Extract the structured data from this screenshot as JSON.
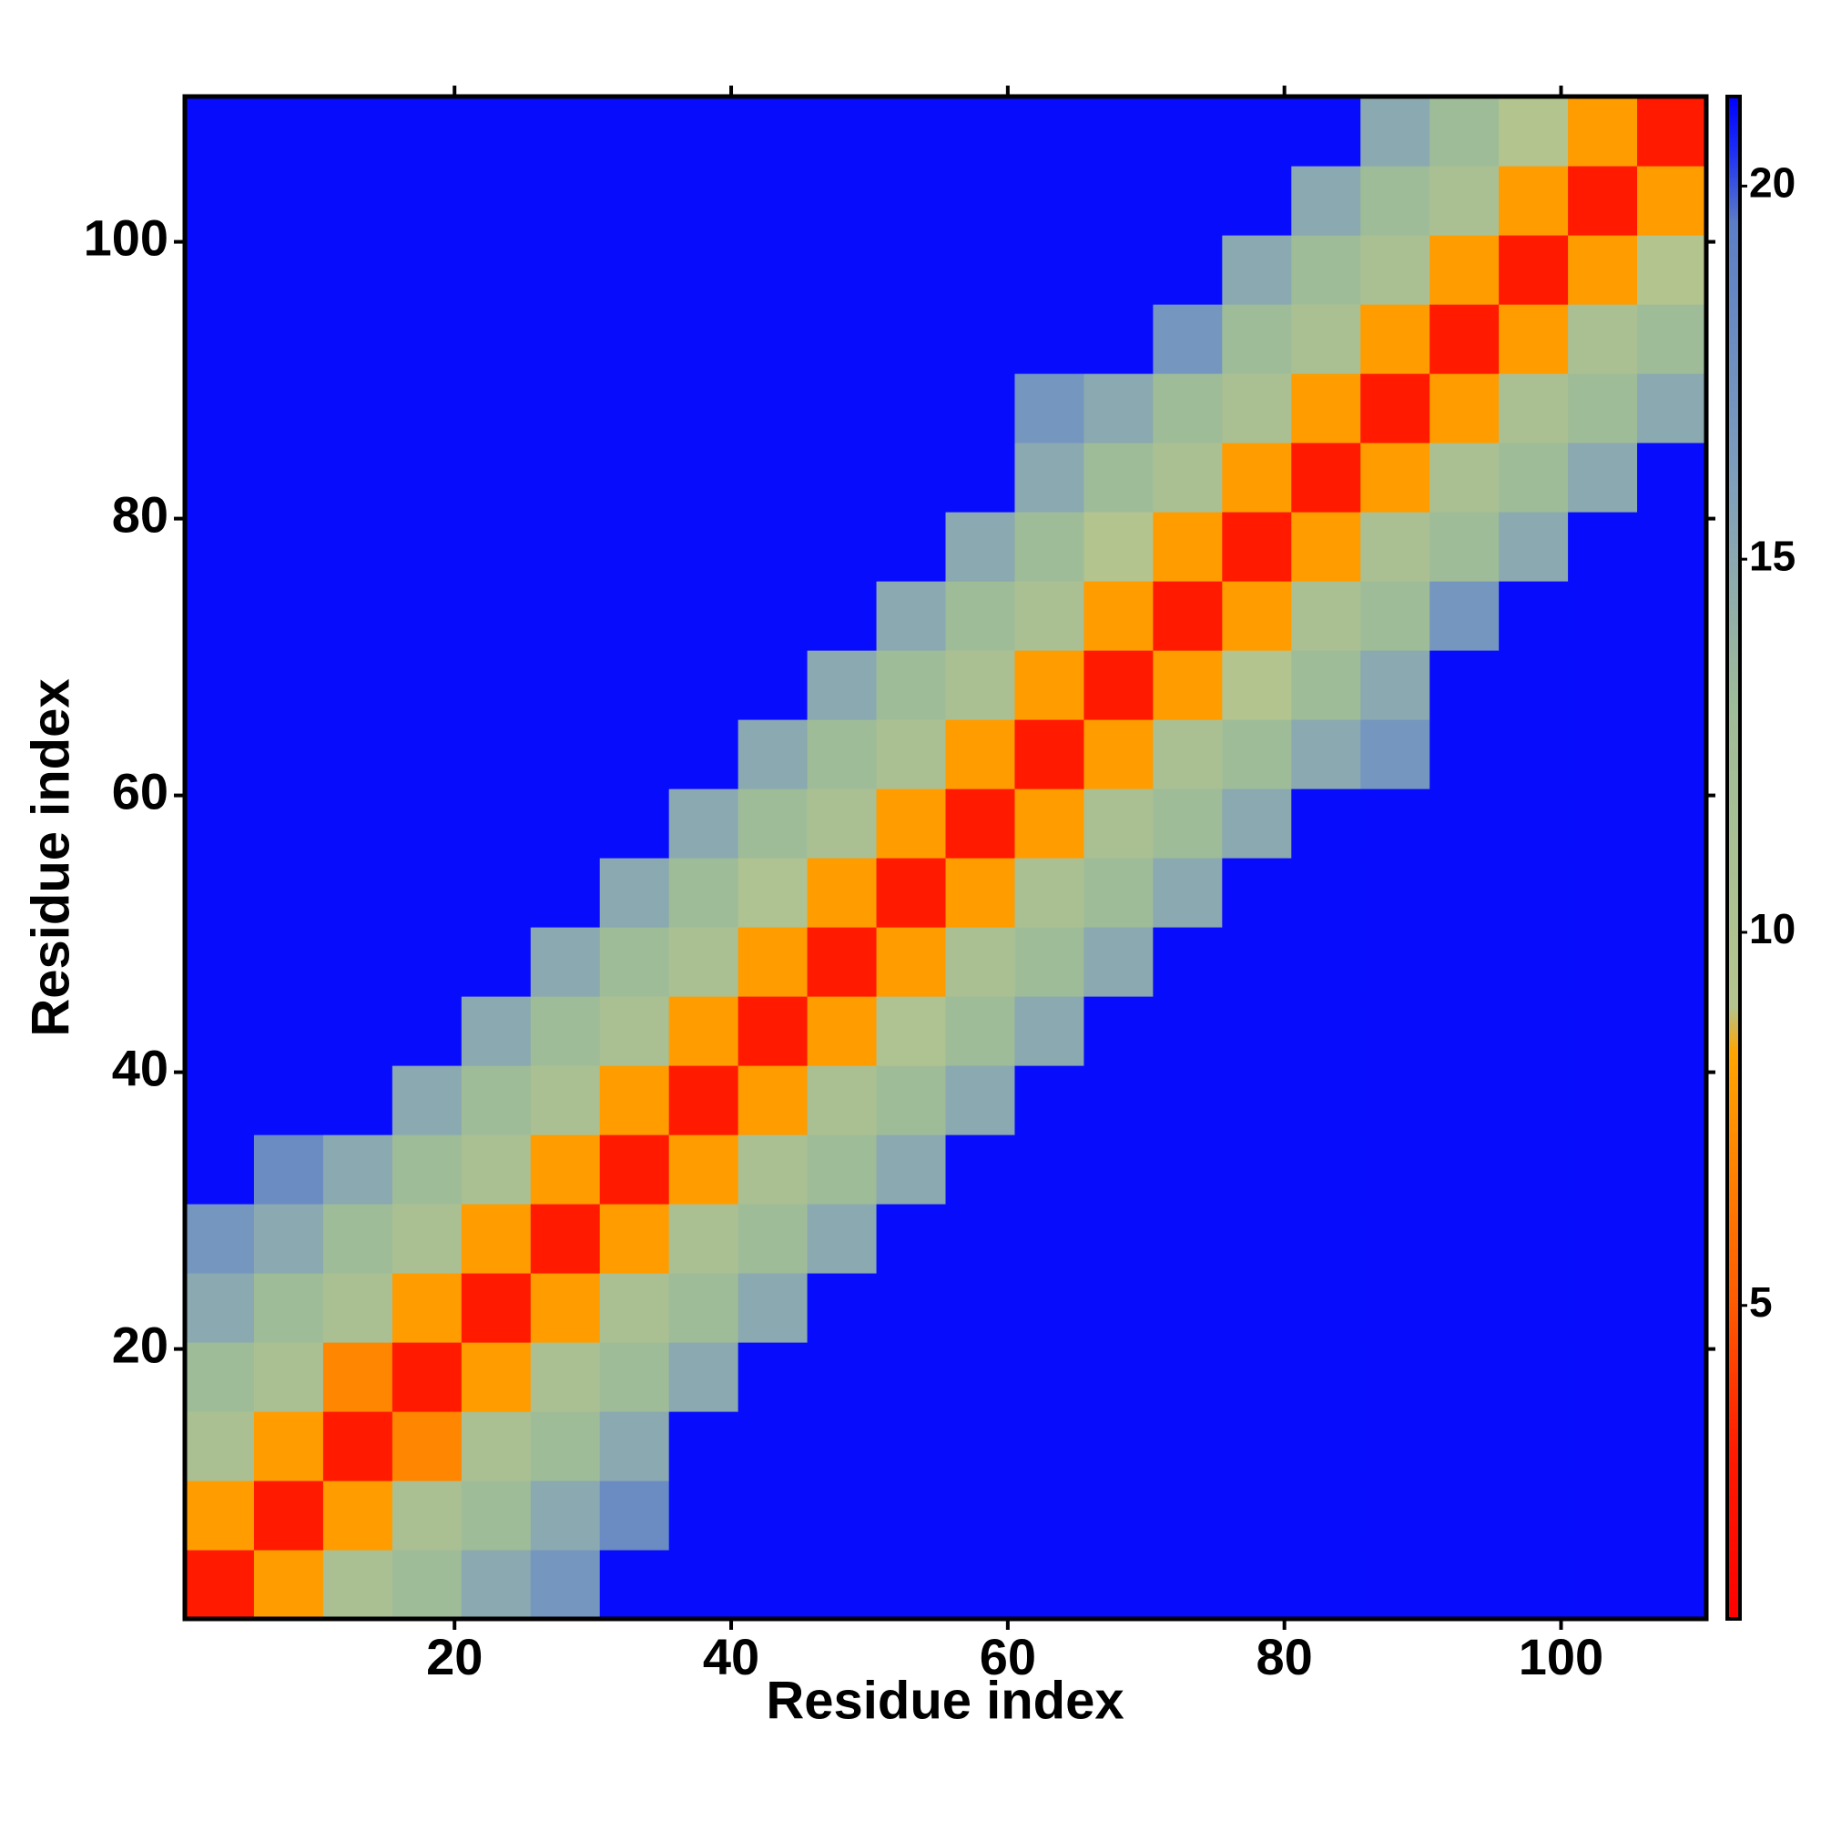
{
  "chart_data": {
    "type": "heatmap",
    "x_label": "Residue index",
    "y_label": "Residue index",
    "x": [
      3,
      8,
      13,
      18,
      23,
      28,
      33,
      38,
      43,
      48,
      53,
      58,
      63,
      68,
      73,
      78,
      83,
      88,
      93,
      98,
      103,
      108
    ],
    "y": [
      3,
      8,
      13,
      18,
      23,
      28,
      33,
      38,
      43,
      48,
      53,
      58,
      63,
      68,
      73,
      78,
      83,
      88,
      93,
      98,
      103,
      108
    ],
    "xlim": [
      0.5,
      110.5
    ],
    "ylim": [
      0.5,
      110.5
    ],
    "xticks": [
      20,
      40,
      60,
      80,
      100
    ],
    "yticks": [
      20,
      40,
      60,
      80,
      100
    ],
    "zlim": [
      0.8,
      21.2
    ],
    "zticks": [
      5,
      10,
      15,
      20
    ],
    "colorscale": [
      [
        0.8,
        "#ff0000"
      ],
      [
        3,
        "#ff1a00"
      ],
      [
        5,
        "#ff5a00"
      ],
      [
        8.4,
        "#ffa500"
      ],
      [
        9,
        "#b4c48e"
      ],
      [
        13,
        "#9fbc98"
      ],
      [
        16,
        "#7f9fbc"
      ],
      [
        19.5,
        "#5c7ec6"
      ],
      [
        20.5,
        "#1a2cf6"
      ],
      [
        21.2,
        "#0000ff"
      ]
    ],
    "z": [
      [
        3,
        8,
        11,
        13,
        15,
        17,
        21,
        21,
        21,
        21,
        21,
        21,
        21,
        21,
        21,
        21,
        21,
        21,
        21,
        21,
        21,
        21
      ],
      [
        8,
        3,
        8,
        11,
        13,
        15,
        18,
        21,
        21,
        21,
        21,
        21,
        21,
        21,
        21,
        21,
        21,
        21,
        21,
        21,
        21,
        21
      ],
      [
        11,
        8,
        3,
        7,
        11,
        13,
        15,
        21,
        21,
        21,
        21,
        21,
        21,
        21,
        21,
        21,
        21,
        21,
        21,
        21,
        21,
        21
      ],
      [
        13,
        11,
        7,
        3,
        8,
        11,
        13,
        15,
        21,
        21,
        21,
        21,
        21,
        21,
        21,
        21,
        21,
        21,
        21,
        21,
        21,
        21
      ],
      [
        15,
        13,
        11,
        8,
        3,
        8,
        11,
        13,
        15,
        21,
        21,
        21,
        21,
        21,
        21,
        21,
        21,
        21,
        21,
        21,
        21,
        21
      ],
      [
        17,
        15,
        13,
        11,
        8,
        3,
        8,
        11,
        13,
        15,
        21,
        21,
        21,
        21,
        21,
        21,
        21,
        21,
        21,
        21,
        21,
        21
      ],
      [
        21,
        18,
        15,
        13,
        11,
        8,
        3,
        8,
        11,
        13,
        15,
        21,
        21,
        21,
        21,
        21,
        21,
        21,
        21,
        21,
        21,
        21
      ],
      [
        21,
        21,
        21,
        15,
        13,
        11,
        8,
        3,
        8,
        11,
        13,
        15,
        21,
        21,
        21,
        21,
        21,
        21,
        21,
        21,
        21,
        21
      ],
      [
        21,
        21,
        21,
        21,
        15,
        13,
        11,
        8,
        3,
        8,
        10,
        13,
        15,
        21,
        21,
        21,
        21,
        21,
        21,
        21,
        21,
        21
      ],
      [
        21,
        21,
        21,
        21,
        21,
        15,
        13,
        11,
        8,
        3,
        8,
        11,
        13,
        15,
        21,
        21,
        21,
        21,
        21,
        21,
        21,
        21
      ],
      [
        21,
        21,
        21,
        21,
        21,
        21,
        15,
        13,
        10,
        8,
        3,
        8,
        11,
        13,
        15,
        21,
        21,
        21,
        21,
        21,
        21,
        21
      ],
      [
        21,
        21,
        21,
        21,
        21,
        21,
        21,
        15,
        13,
        11,
        8,
        3,
        8,
        11,
        13,
        15,
        21,
        21,
        21,
        21,
        21,
        21
      ],
      [
        21,
        21,
        21,
        21,
        21,
        21,
        21,
        21,
        15,
        13,
        11,
        8,
        3,
        8,
        11,
        13,
        15,
        17,
        21,
        21,
        21,
        21
      ],
      [
        21,
        21,
        21,
        21,
        21,
        21,
        21,
        21,
        21,
        15,
        13,
        11,
        8,
        3,
        8,
        9,
        13,
        15,
        21,
        21,
        21,
        21
      ],
      [
        21,
        21,
        21,
        21,
        21,
        21,
        21,
        21,
        21,
        21,
        15,
        13,
        11,
        8,
        3,
        8,
        11,
        13,
        17,
        21,
        21,
        21
      ],
      [
        21,
        21,
        21,
        21,
        21,
        21,
        21,
        21,
        21,
        21,
        21,
        15,
        13,
        9,
        8,
        3,
        8,
        11,
        13,
        15,
        21,
        21
      ],
      [
        21,
        21,
        21,
        21,
        21,
        21,
        21,
        21,
        21,
        21,
        21,
        21,
        15,
        13,
        11,
        8,
        3,
        8,
        11,
        13,
        15,
        21
      ],
      [
        21,
        21,
        21,
        21,
        21,
        21,
        21,
        21,
        21,
        21,
        21,
        21,
        17,
        15,
        13,
        11,
        8,
        3,
        8,
        11,
        13,
        15
      ],
      [
        21,
        21,
        21,
        21,
        21,
        21,
        21,
        21,
        21,
        21,
        21,
        21,
        21,
        21,
        17,
        13,
        11,
        8,
        3,
        8,
        11,
        13
      ],
      [
        21,
        21,
        21,
        21,
        21,
        21,
        21,
        21,
        21,
        21,
        21,
        21,
        21,
        21,
        21,
        15,
        13,
        11,
        8,
        3,
        8,
        9
      ],
      [
        21,
        21,
        21,
        21,
        21,
        21,
        21,
        21,
        21,
        21,
        21,
        21,
        21,
        21,
        21,
        21,
        15,
        13,
        11,
        8,
        3,
        8
      ],
      [
        21,
        21,
        21,
        21,
        21,
        21,
        21,
        21,
        21,
        21,
        21,
        21,
        21,
        21,
        21,
        21,
        21,
        15,
        13,
        9,
        8,
        3
      ]
    ]
  }
}
